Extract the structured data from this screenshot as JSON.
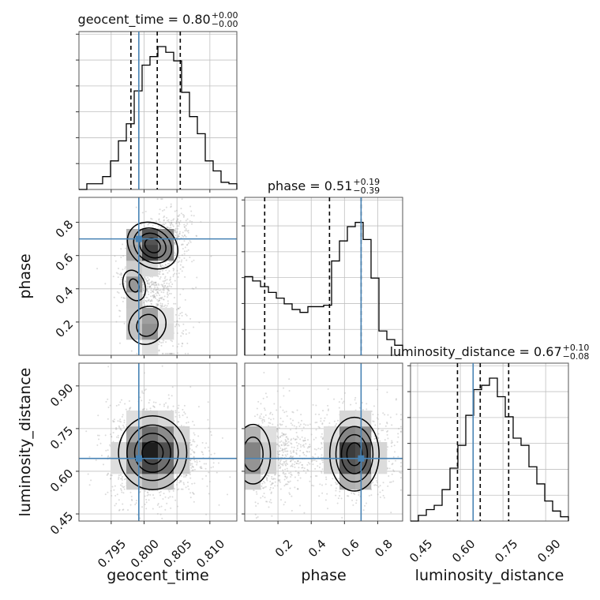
{
  "chart_data": {
    "type": "corner",
    "parameters": [
      "geocent_time",
      "phase",
      "luminosity_distance"
    ],
    "titles": [
      {
        "param": "geocent_time",
        "text": "geocent_time = 0.80",
        "sup": "+0.00",
        "sub": "−0.00"
      },
      {
        "param": "phase",
        "text": "phase = 0.51",
        "sup": "+0.19",
        "sub": "−0.39"
      },
      {
        "param": "luminosity_distance",
        "text": "luminosity_distance = 0.67",
        "sup": "+0.10",
        "sub": "−0.08"
      }
    ],
    "xlabels": [
      "geocent_time",
      "phase",
      "luminosity_distance"
    ],
    "ylabels": [
      "phase",
      "luminosity_distance"
    ],
    "ranges": {
      "geocent_time": [
        0.7901,
        0.8141
      ],
      "phase": [
        0.0,
        0.95
      ],
      "luminosity_distance": [
        0.425,
        0.98
      ]
    },
    "ticks": {
      "geocent_time": [
        0.795,
        0.8,
        0.805,
        0.81
      ],
      "phase": [
        0.2,
        0.4,
        0.6,
        0.8
      ],
      "luminosity_distance": [
        0.45,
        0.6,
        0.75,
        0.9
      ]
    },
    "tick_labels": {
      "geocent_time": [
        "0.795",
        "0.800",
        "0.805",
        "0.810"
      ],
      "phase": [
        "0.2",
        "0.4",
        "0.6",
        "0.8"
      ],
      "luminosity_distance": [
        "0.45",
        "0.60",
        "0.75",
        "0.90"
      ]
    },
    "truths": {
      "geocent_time": 0.7992,
      "phase": 0.7,
      "luminosity_distance": 0.645
    },
    "quantiles": {
      "geocent_time": [
        0.798,
        0.802,
        0.8055
      ],
      "phase": [
        0.12,
        0.51,
        0.7
      ],
      "luminosity_distance": [
        0.59,
        0.67,
        0.77
      ]
    },
    "histograms": {
      "geocent_time": [
        0.0,
        0.04,
        0.04,
        0.09,
        0.2,
        0.34,
        0.46,
        0.69,
        0.87,
        0.93,
        1.0,
        0.96,
        0.9,
        0.68,
        0.51,
        0.39,
        0.2,
        0.13,
        0.05,
        0.04
      ],
      "phase": [
        0.55,
        0.52,
        0.48,
        0.44,
        0.4,
        0.36,
        0.32,
        0.3,
        0.34,
        0.34,
        0.35,
        0.66,
        0.8,
        0.9,
        0.93,
        0.81,
        0.54,
        0.17,
        0.11,
        0.07
      ],
      "luminosity_distance": [
        0.0,
        0.04,
        0.08,
        0.11,
        0.22,
        0.37,
        0.53,
        0.74,
        0.92,
        0.95,
        1.0,
        0.87,
        0.73,
        0.58,
        0.53,
        0.38,
        0.26,
        0.14,
        0.07,
        0.03
      ]
    },
    "grid": true,
    "colors": {
      "truth": "#4682b4",
      "line": "#000000",
      "scatter": "#b0b0b0",
      "grid": "#c0c0c0"
    }
  }
}
